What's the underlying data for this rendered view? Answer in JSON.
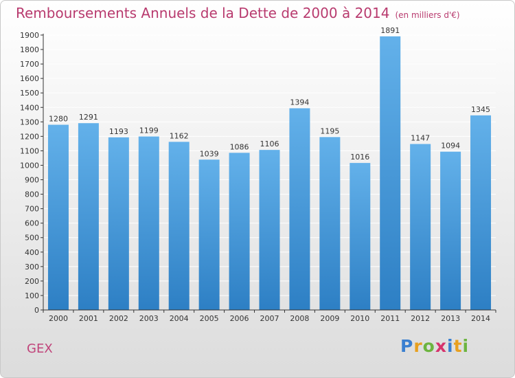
{
  "title": "Remboursements Annuels de la Dette de 2000 à 2014",
  "subtitle": "(en milliers d'€)",
  "location": "GEX",
  "logo": {
    "text": "Proxiti",
    "letters": [
      "P",
      "r",
      "o",
      "x",
      "i",
      "t",
      "i"
    ],
    "colors": [
      "#3a7fd0",
      "#e8a020",
      "#6cb43f",
      "#d6336c",
      "#3a7fd0",
      "#e8a020",
      "#6cb43f"
    ]
  },
  "colors": {
    "title": "#b83a6e",
    "bar_top": "#63b1ea",
    "bar_bottom": "#2d7fc4",
    "grid": "#ffffff",
    "axis": "#333333"
  },
  "chart_data": {
    "type": "bar",
    "categories": [
      "2000",
      "2001",
      "2002",
      "2003",
      "2004",
      "2005",
      "2006",
      "2007",
      "2008",
      "2009",
      "2010",
      "2011",
      "2012",
      "2013",
      "2014"
    ],
    "values": [
      1280,
      1291,
      1193,
      1199,
      1162,
      1039,
      1086,
      1106,
      1394,
      1195,
      1016,
      1891,
      1147,
      1094,
      1345
    ],
    "ylim": [
      0,
      1900
    ],
    "yticks": [
      0,
      100,
      200,
      300,
      400,
      500,
      600,
      700,
      800,
      900,
      1000,
      1100,
      1200,
      1300,
      1400,
      1500,
      1600,
      1700,
      1800,
      1900
    ],
    "grid": true,
    "data_labels": true
  }
}
